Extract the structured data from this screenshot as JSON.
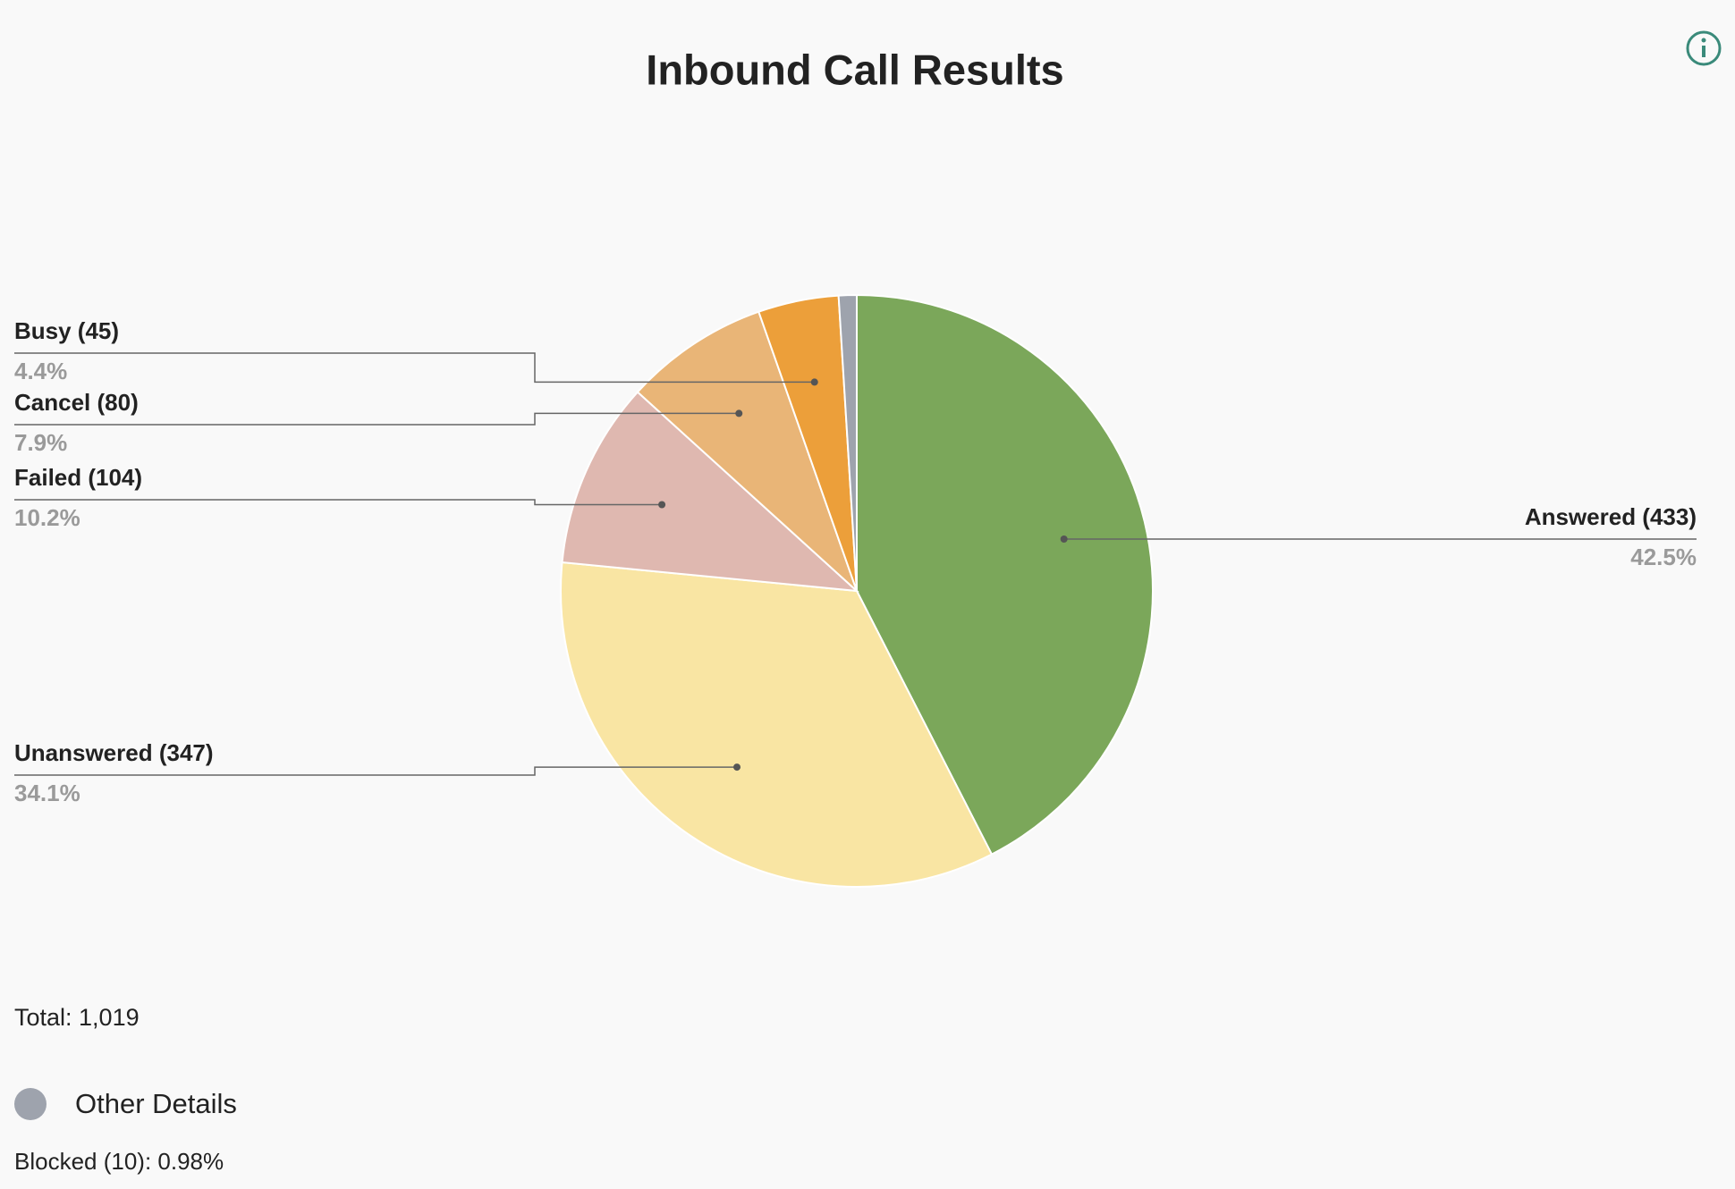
{
  "chart_data": {
    "type": "pie",
    "title": "Inbound Call Results",
    "categories": [
      "Answered (433)",
      "Unanswered (347)",
      "Failed (104)",
      "Cancel (80)",
      "Busy (45)",
      null
    ],
    "values": [
      42.5,
      34.1,
      10.2,
      7.9,
      4.4,
      0.98
    ],
    "value_labels": [
      "42.5%",
      "34.1%",
      "10.2%",
      "7.9%",
      "4.4%",
      null
    ],
    "colors": [
      "#7ba75a",
      "#f9e5a3",
      "#dfb8b0",
      "#e9b577",
      "#ec9f3a",
      "#9ea3ad"
    ],
    "total": "Total: 1,019",
    "other_details": {
      "title": "Other Details",
      "text": "Blocked (10): 0.98%"
    }
  }
}
